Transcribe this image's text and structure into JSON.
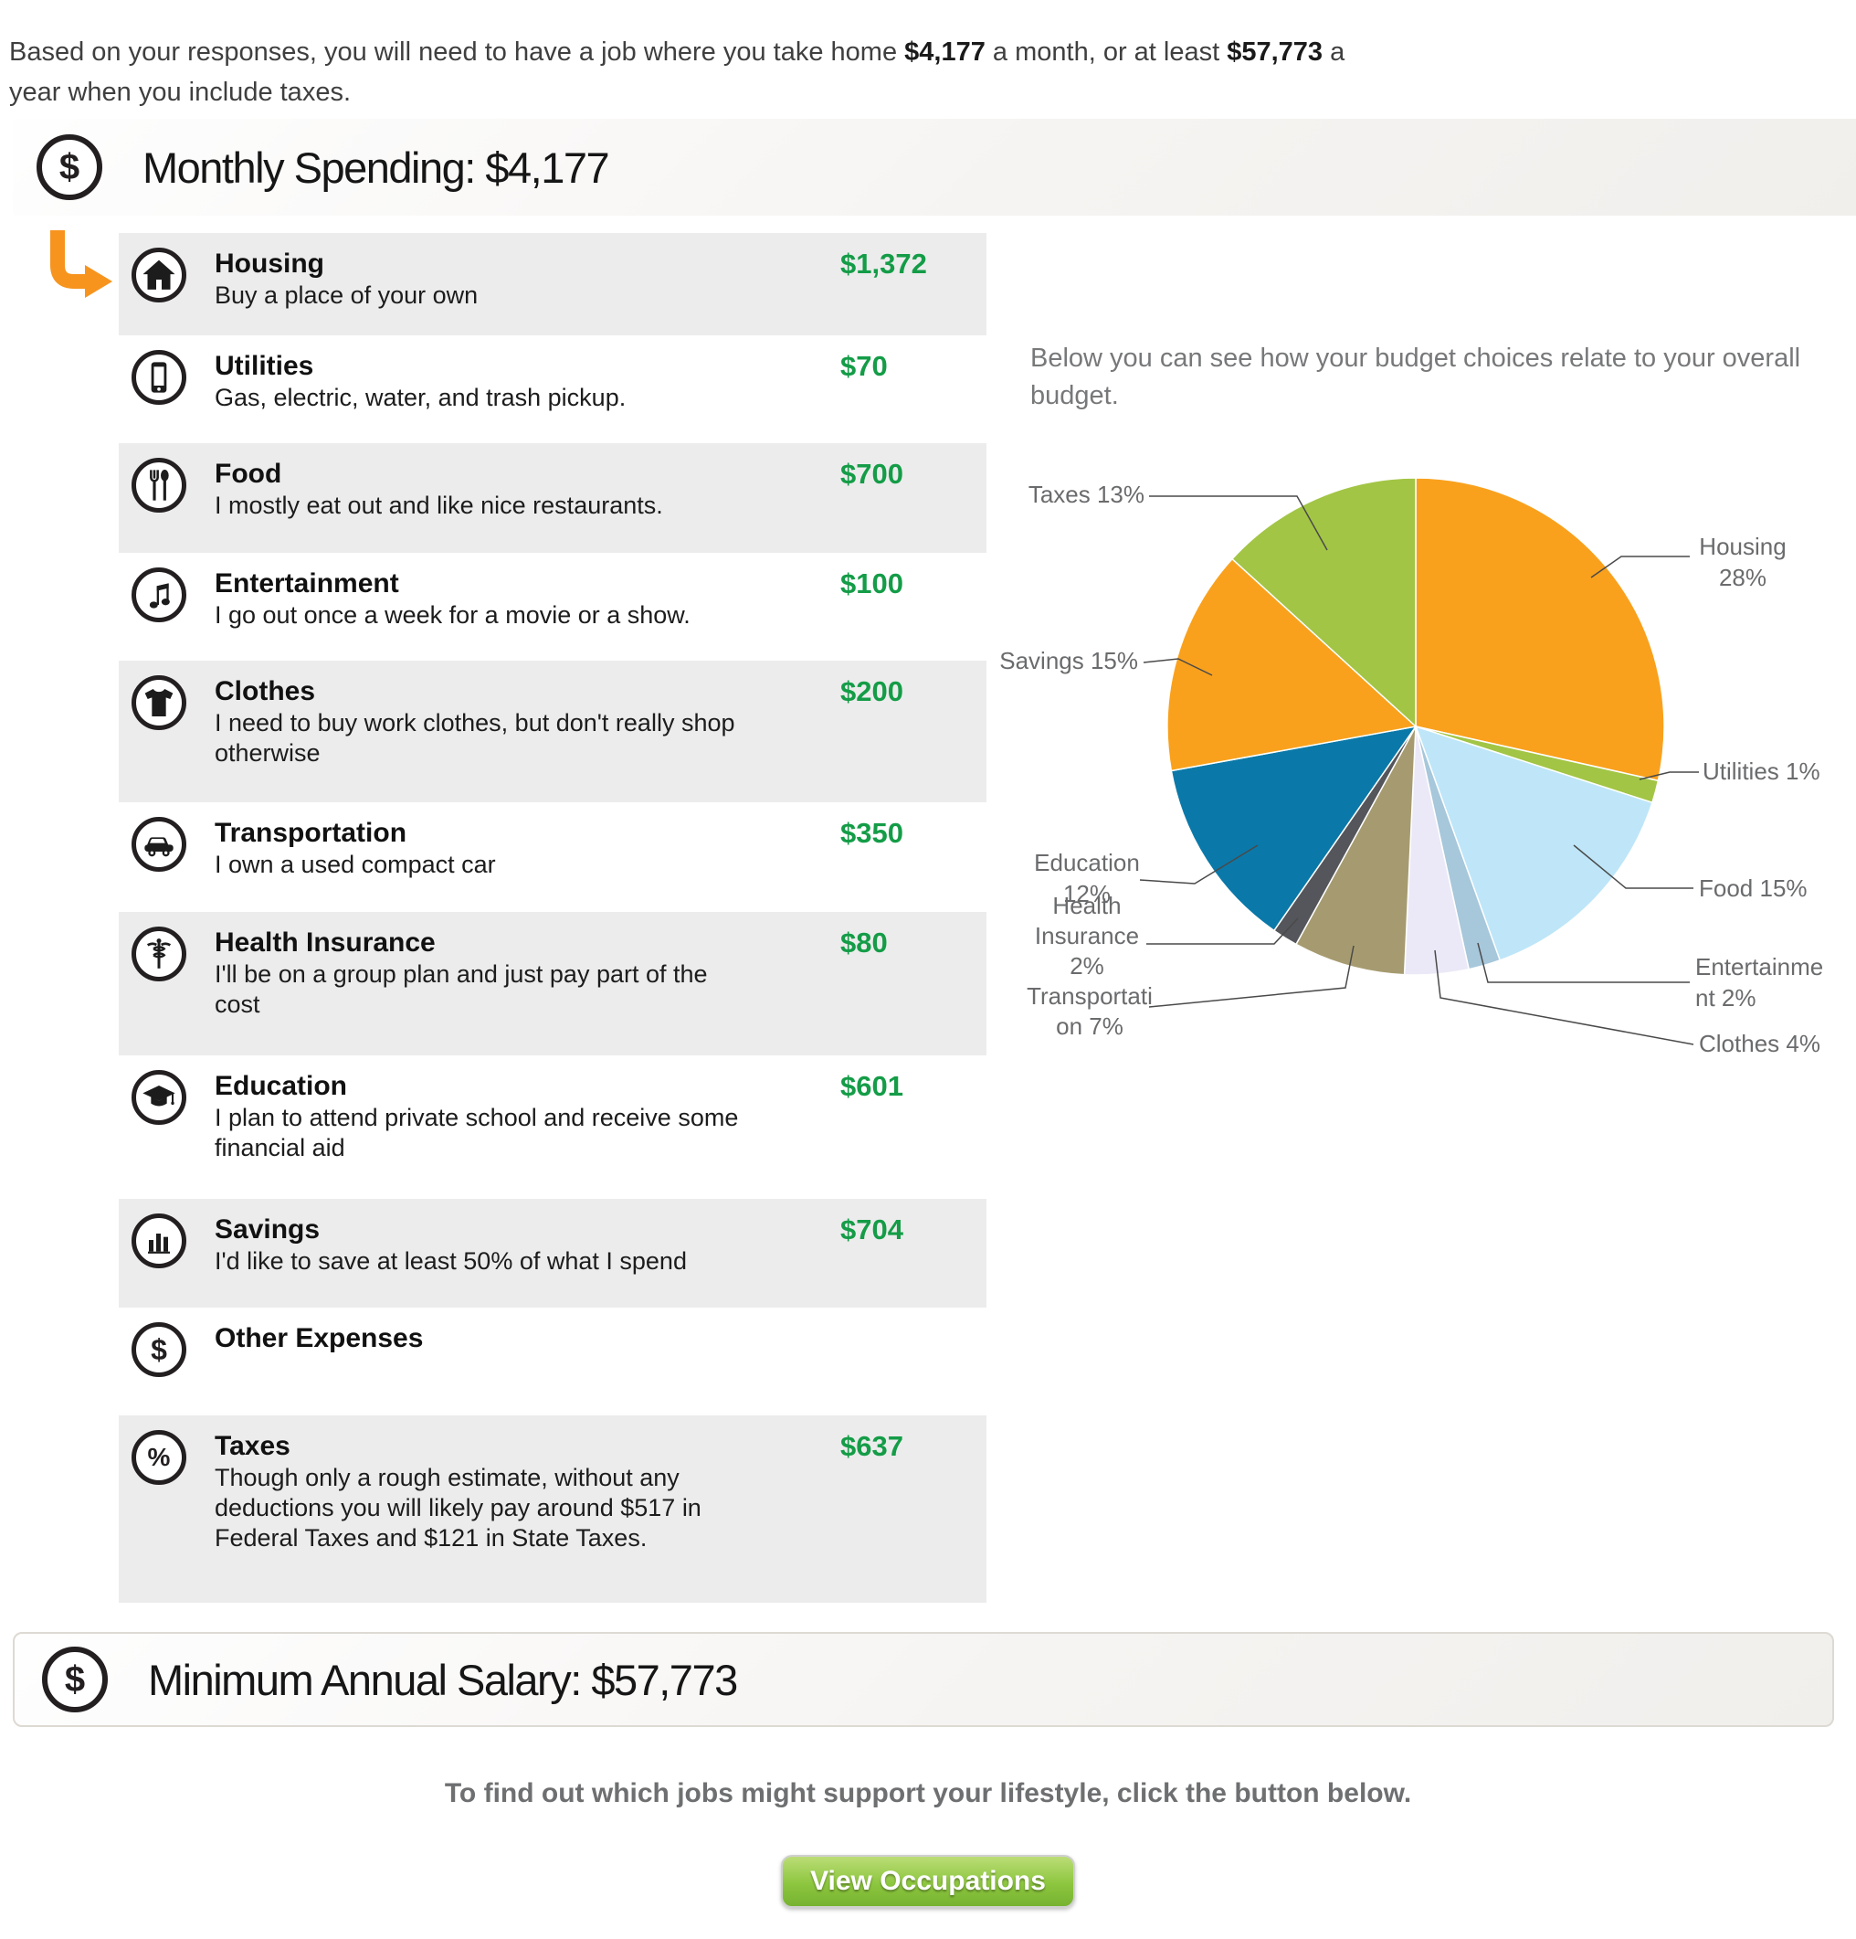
{
  "intro": {
    "part1": "Based on your responses, you will need to have a job where you take home ",
    "monthly_amount": "$4,177",
    "part2": " a month, or at least ",
    "annual_amount": "$57,773",
    "part3": " a year when you include taxes."
  },
  "monthly_header": {
    "icon": "$",
    "title": "Monthly Spending: $4,177"
  },
  "budget_note": "Below you can see how your budget choices relate to your overall\nbudget.",
  "categories": [
    {
      "name": "Housing",
      "desc": "Buy a place of your own",
      "amount": "$1,372"
    },
    {
      "name": "Utilities",
      "desc": "Gas, electric, water, and trash pickup.",
      "amount": "$70"
    },
    {
      "name": "Food",
      "desc": "I mostly eat out and like nice restaurants.",
      "amount": "$700"
    },
    {
      "name": "Entertainment",
      "desc": "I go out once a week for a movie or a show.",
      "amount": "$100"
    },
    {
      "name": "Clothes",
      "desc": "I need to buy work clothes, but don't really shop\notherwise",
      "amount": "$200"
    },
    {
      "name": "Transportation",
      "desc": "I own a used compact car",
      "amount": "$350"
    },
    {
      "name": "Health Insurance",
      "desc": "I'll be on a group plan and just pay part of the\ncost",
      "amount": "$80"
    },
    {
      "name": "Education",
      "desc": "I plan to attend private school and receive some\nfinancial aid",
      "amount": "$601"
    },
    {
      "name": "Savings",
      "desc": "I'd like to save at least 50% of what I spend",
      "amount": "$704"
    },
    {
      "name": "Other Expenses",
      "desc": "",
      "amount": ""
    },
    {
      "name": "Taxes",
      "desc": "Though only a rough estimate, without any\ndeductions you will likely pay around $517 in\nFederal Taxes and $121 in State Taxes.",
      "amount": "$637"
    }
  ],
  "chart_data": {
    "type": "pie",
    "title": "",
    "categories": [
      "Housing",
      "Utilities",
      "Food",
      "Entertainment",
      "Clothes",
      "Transportation",
      "Health Insurance",
      "Education",
      "Savings",
      "Taxes"
    ],
    "values": [
      1372,
      70,
      700,
      100,
      200,
      350,
      80,
      601,
      704,
      637
    ],
    "percents": [
      28,
      1,
      15,
      2,
      4,
      7,
      2,
      12,
      15,
      13
    ],
    "colors": [
      "#F9A11D",
      "#A2C545",
      "#BEE6F8",
      "#A7C7DB",
      "#EBE9F7",
      "#A69B70",
      "#54565B",
      "#0A79A9",
      "#F9A11D",
      "#A2C545"
    ],
    "start_angle_deg": 0,
    "clockwise": true,
    "legend": "callout-labels",
    "callouts": {
      "taxes": [
        "Taxes 13%"
      ],
      "housing": [
        "Housing",
        "28%"
      ],
      "savings": [
        "Savings 15%"
      ],
      "utilities": [
        "Utilities 1%"
      ],
      "education": [
        "Education",
        "12%"
      ],
      "health": [
        "Health",
        "Insurance",
        "2%"
      ],
      "transportation": [
        "Transportati",
        "on 7%"
      ],
      "food": [
        "Food 15%"
      ],
      "entertainment": [
        "Entertainme",
        "nt 2%"
      ],
      "clothes": [
        "Clothes 4%"
      ]
    }
  },
  "salary_header": {
    "icon": "$",
    "title": "Minimum Annual Salary: $57,773"
  },
  "footer": {
    "cta": "To find out which jobs might support your lifestyle, click the button below.",
    "button_label": "View Occupations"
  }
}
